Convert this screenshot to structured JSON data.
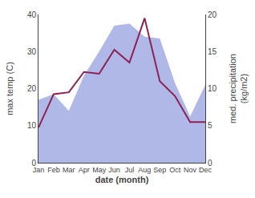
{
  "chart_data": {
    "type": "line",
    "categories": [
      "Jan",
      "Feb",
      "Mar",
      "Apr",
      "May",
      "Jun",
      "Jul",
      "Aug",
      "Sep",
      "Oct",
      "Nov",
      "Dec"
    ],
    "xlabel": "date (month)",
    "ylabel": "max temp (C)",
    "y2label": "med. precipitation\n(kg/m2)",
    "series": [
      {
        "type": "area",
        "color": "#b0b8e8",
        "values": [
          17.0,
          18.5,
          14.0,
          23.5,
          30.0,
          37.0,
          37.5,
          34.0,
          33.5,
          21.5,
          12.5,
          21.0
        ]
      },
      {
        "type": "line",
        "color": "#8B2252",
        "values": [
          9.5,
          18.5,
          19.0,
          24.5,
          24.0,
          30.5,
          27.0,
          39.0,
          22.0,
          18.0,
          11.0,
          11.0
        ]
      }
    ],
    "ylim": [
      0,
      40
    ],
    "yticks": [
      0,
      10,
      20,
      30,
      40
    ],
    "y2lim": [
      0,
      20
    ],
    "y2ticks": [
      0,
      5,
      10,
      15,
      20
    ],
    "grid": false
  }
}
